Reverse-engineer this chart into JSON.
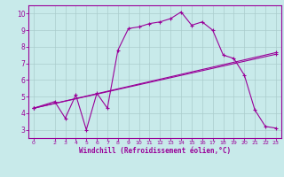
{
  "title": "",
  "xlabel": "Windchill (Refroidissement éolien,°C)",
  "bg_color": "#c8eaea",
  "grid_color": "#aacccc",
  "line_color": "#990099",
  "xlim": [
    -0.5,
    23.5
  ],
  "ylim": [
    2.5,
    10.5
  ],
  "xticks": [
    0,
    2,
    3,
    4,
    5,
    6,
    7,
    8,
    9,
    10,
    11,
    12,
    13,
    14,
    15,
    16,
    17,
    18,
    19,
    20,
    21,
    22,
    23
  ],
  "yticks": [
    3,
    4,
    5,
    6,
    7,
    8,
    9,
    10
  ],
  "curve1_x": [
    0,
    2,
    3,
    4,
    5,
    6,
    7,
    8,
    9,
    10,
    11,
    12,
    13,
    14,
    15,
    16,
    17,
    18,
    19,
    20,
    21,
    22,
    23
  ],
  "curve1_y": [
    4.3,
    4.7,
    3.7,
    5.1,
    3.0,
    5.2,
    4.3,
    7.8,
    9.1,
    9.2,
    9.4,
    9.5,
    9.7,
    10.1,
    9.3,
    9.5,
    9.0,
    7.5,
    7.3,
    6.3,
    4.2,
    3.2,
    3.1
  ],
  "curve2_x": [
    0,
    23
  ],
  "curve2_y": [
    4.3,
    7.55
  ],
  "curve3_x": [
    0,
    23
  ],
  "curve3_y": [
    4.3,
    7.65
  ]
}
